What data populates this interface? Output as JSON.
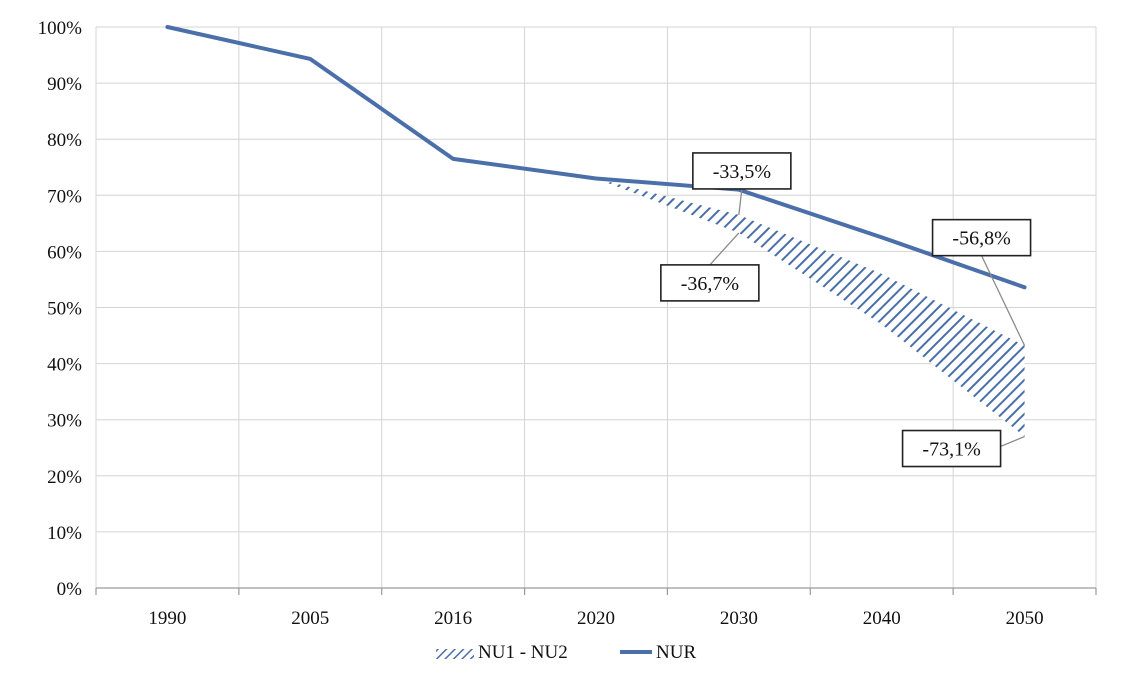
{
  "chart_data": {
    "type": "line",
    "categories": [
      "1990",
      "2005",
      "2016",
      "2020",
      "2030",
      "2040",
      "2050"
    ],
    "series": [
      {
        "name": "NUR",
        "style": "solid",
        "color": "#4a6fa9",
        "values": [
          100,
          94.3,
          76.5,
          73,
          71,
          62.5,
          53.6
        ]
      },
      {
        "name": "NU1 - NU2",
        "style": "hatched-band",
        "color": "#4a6fa9",
        "lower": [
          null,
          null,
          76.5,
          73,
          63.3,
          47,
          27
        ],
        "upper": [
          null,
          null,
          76.5,
          73,
          66.5,
          56,
          43.2
        ]
      }
    ],
    "y_ticks": [
      "0%",
      "10%",
      "20%",
      "30%",
      "40%",
      "50%",
      "60%",
      "70%",
      "80%",
      "90%",
      "100%"
    ],
    "ylim": [
      0,
      100
    ],
    "grid": true,
    "legend_position": "bottom",
    "annotations": [
      {
        "text": "-33,5%",
        "target_x": "2030",
        "target_y": 66.5,
        "placement": "above"
      },
      {
        "text": "-36,7%",
        "target_x": "2030",
        "target_y": 63.3,
        "placement": "below"
      },
      {
        "text": "-56,8%",
        "target_x": "2050",
        "target_y": 43.2,
        "placement": "above"
      },
      {
        "text": "-73,1%",
        "target_x": "2050",
        "target_y": 27,
        "placement": "below"
      }
    ]
  }
}
